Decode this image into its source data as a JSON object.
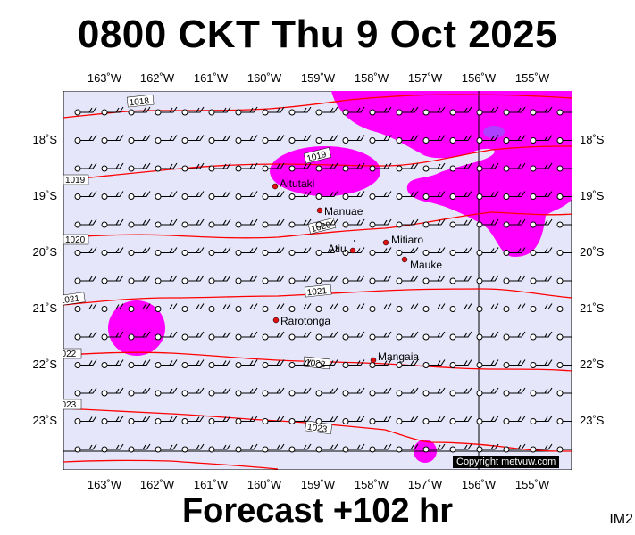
{
  "title": "0800 CKT Thu 9 Oct 2025",
  "forecast": "Forecast +102 hr",
  "corner_code": "IM2",
  "copyright": "Copyright metvuw.com",
  "colors": {
    "ocean": "#e6e6fa",
    "rain": "#ff00ff",
    "isobar": "#ff0000",
    "land": "#000000",
    "town_marker": "#dd1111"
  },
  "map": {
    "lon_labels": [
      "163˚W",
      "162˚W",
      "161˚W",
      "160˚W",
      "159˚W",
      "158˚W",
      "157˚W",
      "156˚W",
      "155˚W"
    ],
    "lat_labels": [
      "18˚S",
      "19˚S",
      "20˚S",
      "21˚S",
      "22˚S",
      "23˚S"
    ],
    "isobars": [
      "1018",
      "1019",
      "1019",
      "1020",
      "1020",
      "1021",
      "1021",
      "1022",
      "1022",
      "1023",
      "1023"
    ],
    "places": [
      {
        "name": "Aitutaki"
      },
      {
        "name": "Manuae"
      },
      {
        "name": "Mitiaro"
      },
      {
        "name": "Atiu"
      },
      {
        "name": "Mauke"
      },
      {
        "name": "Rarotonga"
      },
      {
        "name": "Mangaia"
      }
    ]
  }
}
